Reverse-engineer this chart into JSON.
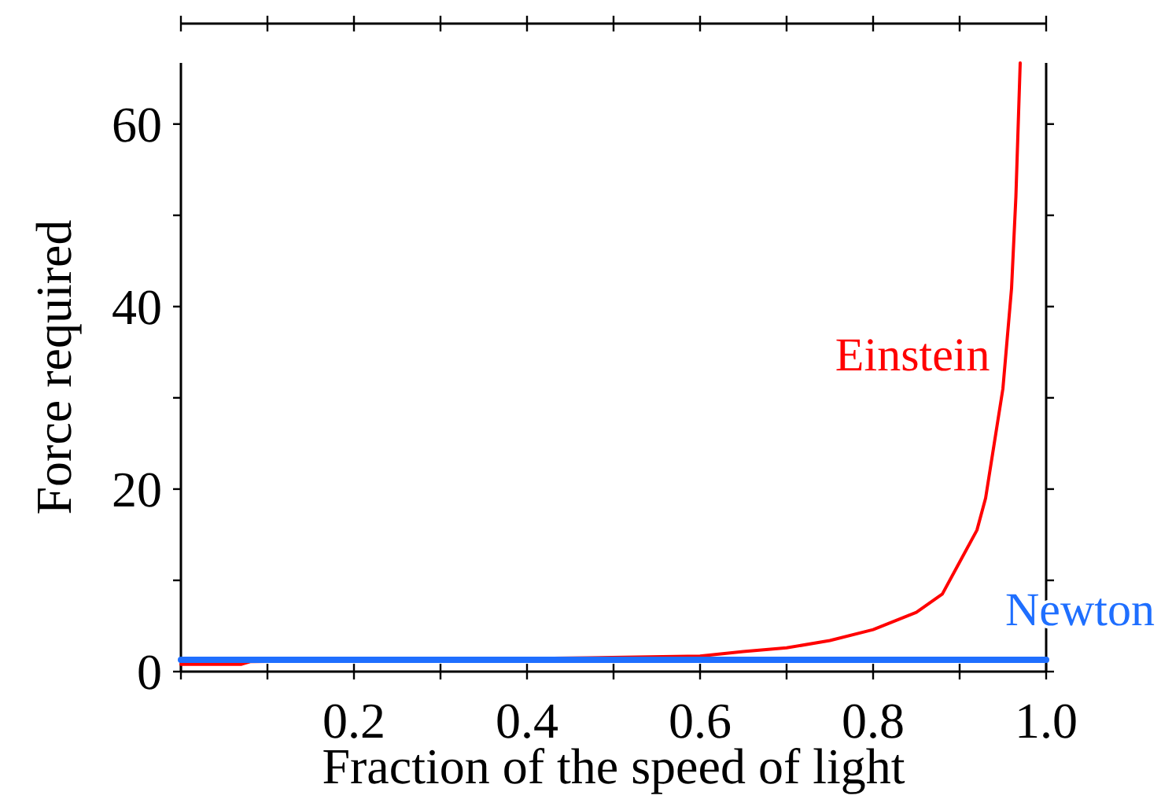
{
  "chart_data": {
    "type": "line",
    "xlabel": "Fraction of the speed of light",
    "ylabel": "Force required",
    "xlim": [
      0,
      1
    ],
    "ylim": [
      0,
      66.7
    ],
    "xticks": [
      {
        "value": 0,
        "label": null
      },
      {
        "value": 0.1,
        "label": null
      },
      0.2,
      {
        "value": 0.3,
        "label": null
      },
      0.4,
      {
        "value": 0.5,
        "label": null
      },
      0.6,
      {
        "value": 0.7,
        "label": null
      },
      0.8,
      {
        "value": 0.9,
        "label": null
      },
      {
        "value": 1,
        "label": "1.0"
      }
    ],
    "yticks": [
      0,
      {
        "value": 10,
        "label": null
      },
      20,
      {
        "value": 30,
        "label": null
      },
      40,
      {
        "value": 50,
        "label": null
      },
      60
    ],
    "grid": false,
    "marker": "none",
    "line_style": "solid",
    "series": [
      {
        "name": "Einstein",
        "color": "#ff0000",
        "x": [
          0,
          0.07,
          0.08,
          0.47,
          0.6,
          0.65,
          0.7,
          0.75,
          0.8,
          0.85,
          0.88,
          0.9,
          0.92,
          0.93,
          0.94,
          0.95,
          0.96,
          0.965,
          0.97
        ],
        "values": [
          0.8,
          0.8,
          1.1,
          1.5,
          1.7,
          2.2,
          2.6,
          3.4,
          4.6,
          6.5,
          8.5,
          12,
          15.5,
          19,
          25,
          31,
          42,
          52,
          66.7
        ]
      },
      {
        "name": "Newton",
        "color": "#1f6fff",
        "x": [
          0,
          1
        ],
        "values": [
          1.3,
          1.3
        ]
      }
    ]
  }
}
